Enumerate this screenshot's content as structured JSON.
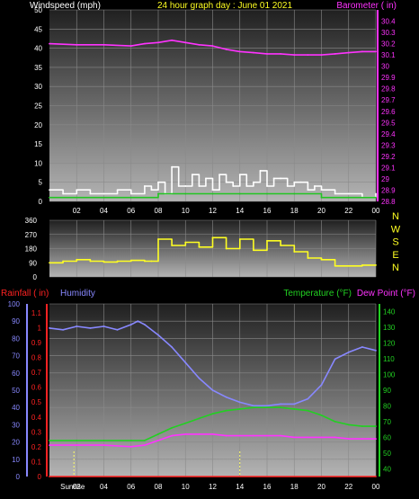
{
  "page": {
    "colors": {
      "background": "#000000",
      "plot_top": "#202020",
      "plot_bottom": "#b4b4b4",
      "grid": "#8a8a8a",
      "windspeed": "#ffffff",
      "wind_avg": "#22c522",
      "barometer": "#ff33ff",
      "direction": "#ffff22",
      "rainfall": "#ff2222",
      "humidity": "#8888ff",
      "temperature": "#22d022",
      "dew_point": "#ff33ff",
      "time_marker": "#ffff66"
    }
  },
  "chart_data": [
    {
      "type": "line",
      "title": "24 hour graph day : June 01 2021",
      "ylabel": "Windspeed (mph)",
      "y2label": "Barometer ( in)",
      "ylim": [
        0,
        50
      ],
      "y_ticks": [
        "0",
        "5",
        "10",
        "15",
        "20",
        "25",
        "30",
        "35",
        "40",
        "45",
        "50"
      ],
      "y2lim": [
        28.8,
        30.5
      ],
      "y2_ticks": [
        "28.8",
        "28.9",
        "29",
        "29.1",
        "29.2",
        "29.3",
        "29.4",
        "29.5",
        "29.6",
        "29.7",
        "29.8",
        "29.9",
        "30",
        "30.1",
        "30.2",
        "30.3",
        "30.4"
      ],
      "xlim": [
        0,
        24
      ],
      "x_ticks": [
        "02",
        "04",
        "06",
        "08",
        "10",
        "12",
        "14",
        "16",
        "18",
        "20",
        "22",
        "00"
      ],
      "grid": true,
      "series": [
        {
          "axis": "y2",
          "color": "barometer",
          "x": [
            0,
            2,
            4,
            6,
            7,
            8,
            9,
            10,
            11,
            12,
            13,
            14,
            15,
            16,
            17,
            18,
            19,
            20,
            21,
            22,
            23,
            24
          ],
          "y": [
            30.2,
            30.19,
            30.19,
            30.18,
            30.2,
            30.21,
            30.23,
            30.21,
            30.19,
            30.18,
            30.15,
            30.13,
            30.12,
            30.11,
            30.11,
            30.1,
            30.1,
            30.1,
            30.11,
            30.12,
            30.13,
            30.13
          ]
        },
        {
          "axis": "y",
          "color": "windspeed",
          "x": [
            0,
            1,
            2,
            3,
            4,
            5,
            6,
            7,
            7.5,
            8,
            8.5,
            9,
            9.5,
            10,
            10.5,
            11,
            11.5,
            12,
            12.5,
            13,
            13.5,
            14,
            14.5,
            15,
            15.5,
            16,
            16.5,
            17,
            17.5,
            18,
            18.5,
            19,
            19.5,
            20,
            21,
            22,
            23,
            24
          ],
          "y": [
            3,
            2,
            3,
            2,
            2,
            3,
            2,
            4,
            3,
            5,
            2,
            9,
            4,
            4,
            7,
            4,
            6,
            3,
            7,
            5,
            4,
            7,
            4,
            5,
            8,
            4,
            6,
            6,
            4,
            5,
            5,
            3,
            4,
            3,
            2,
            2,
            1,
            2
          ]
        },
        {
          "axis": "y",
          "color": "wind_avg",
          "x": [
            0,
            2,
            4,
            6,
            8,
            10,
            12,
            14,
            16,
            18,
            20,
            22,
            24
          ],
          "y": [
            1,
            1,
            1,
            1,
            2,
            2,
            2,
            2,
            2,
            2,
            1,
            1,
            1
          ]
        }
      ]
    },
    {
      "type": "line",
      "ylabel": "",
      "ylim": [
        0,
        360
      ],
      "y_ticks": [
        "0",
        "90",
        "180",
        "270",
        "360"
      ],
      "y2_ticks": [
        "N",
        "W",
        "S",
        "E",
        "N"
      ],
      "xlim": [
        0,
        24
      ],
      "grid": true,
      "series": [
        {
          "color": "direction",
          "x": [
            0,
            1,
            2,
            3,
            4,
            5,
            6,
            7,
            7.5,
            8,
            9,
            10,
            11,
            12,
            13,
            14,
            15,
            16,
            17,
            18,
            19,
            20,
            21,
            22,
            23,
            24
          ],
          "y": [
            90,
            100,
            110,
            100,
            95,
            100,
            105,
            100,
            100,
            240,
            200,
            220,
            190,
            250,
            180,
            240,
            170,
            230,
            200,
            160,
            120,
            110,
            70,
            70,
            75,
            75
          ]
        }
      ]
    },
    {
      "type": "line",
      "ylabel": "Rainfall ( in)",
      "ylabel2": "Humidity",
      "y2label": "Temperature (°F)",
      "y2label2": "Dew Point (°F)",
      "ylim": [
        0,
        100
      ],
      "y_ticks": [
        "0",
        "10",
        "20",
        "30",
        "40",
        "50",
        "60",
        "70",
        "80",
        "90",
        "100"
      ],
      "rain_ticks": [
        "0",
        "0.1",
        "0.2",
        "0.3",
        "0.4",
        "0.5",
        "0.6",
        "0.7",
        "0.8",
        "0.9",
        "1",
        "1.1"
      ],
      "y2lim": [
        35,
        145
      ],
      "y2_ticks": [
        "40",
        "50",
        "60",
        "70",
        "80",
        "90",
        "100",
        "110",
        "120",
        "130",
        "140"
      ],
      "xlim": [
        0,
        24
      ],
      "x_ticks": [
        "02",
        "04",
        "06",
        "08",
        "10",
        "12",
        "14",
        "16",
        "18",
        "20",
        "22",
        "00"
      ],
      "x_annotations": [
        "Sunrise",
        "02"
      ],
      "grid": true,
      "series": [
        {
          "name": "Humidity",
          "color": "humidity",
          "axis": "y",
          "x": [
            0,
            1,
            2,
            3,
            4,
            5,
            6,
            6.5,
            7,
            8,
            9,
            10,
            11,
            12,
            13,
            14,
            15,
            16,
            17,
            18,
            19,
            20,
            21,
            22,
            23,
            24
          ],
          "y": [
            86,
            85,
            87,
            86,
            87,
            85,
            88,
            90,
            88,
            82,
            75,
            66,
            57,
            50,
            46,
            43,
            41,
            41,
            42,
            42,
            45,
            53,
            68,
            72,
            75,
            73
          ]
        },
        {
          "name": "Temperature (°F)",
          "color": "temperature",
          "axis": "y2",
          "x": [
            0,
            2,
            4,
            6,
            7,
            8,
            9,
            10,
            11,
            12,
            13,
            14,
            15,
            16,
            17,
            18,
            19,
            20,
            21,
            22,
            23,
            24
          ],
          "y": [
            58,
            58,
            58,
            58,
            58,
            62,
            66,
            69,
            72,
            75,
            77,
            78,
            79,
            79,
            79,
            78,
            77,
            74,
            70,
            68,
            67,
            67
          ]
        },
        {
          "name": "Dew Point (°F)",
          "color": "dew_point",
          "axis": "y2",
          "x": [
            0,
            2,
            4,
            6,
            7,
            8,
            9,
            10,
            11,
            12,
            13,
            14,
            15,
            16,
            17,
            18,
            19,
            20,
            21,
            22,
            23,
            24
          ],
          "y": [
            55,
            55,
            55,
            54,
            55,
            58,
            61,
            62,
            62,
            62,
            61,
            61,
            61,
            61,
            61,
            60,
            60,
            60,
            60,
            59,
            59,
            59
          ]
        },
        {
          "name": "Rainfall ( in)",
          "color": "rainfall",
          "axis": "y",
          "x": [
            0,
            24
          ],
          "y": [
            0,
            0
          ]
        }
      ]
    }
  ]
}
